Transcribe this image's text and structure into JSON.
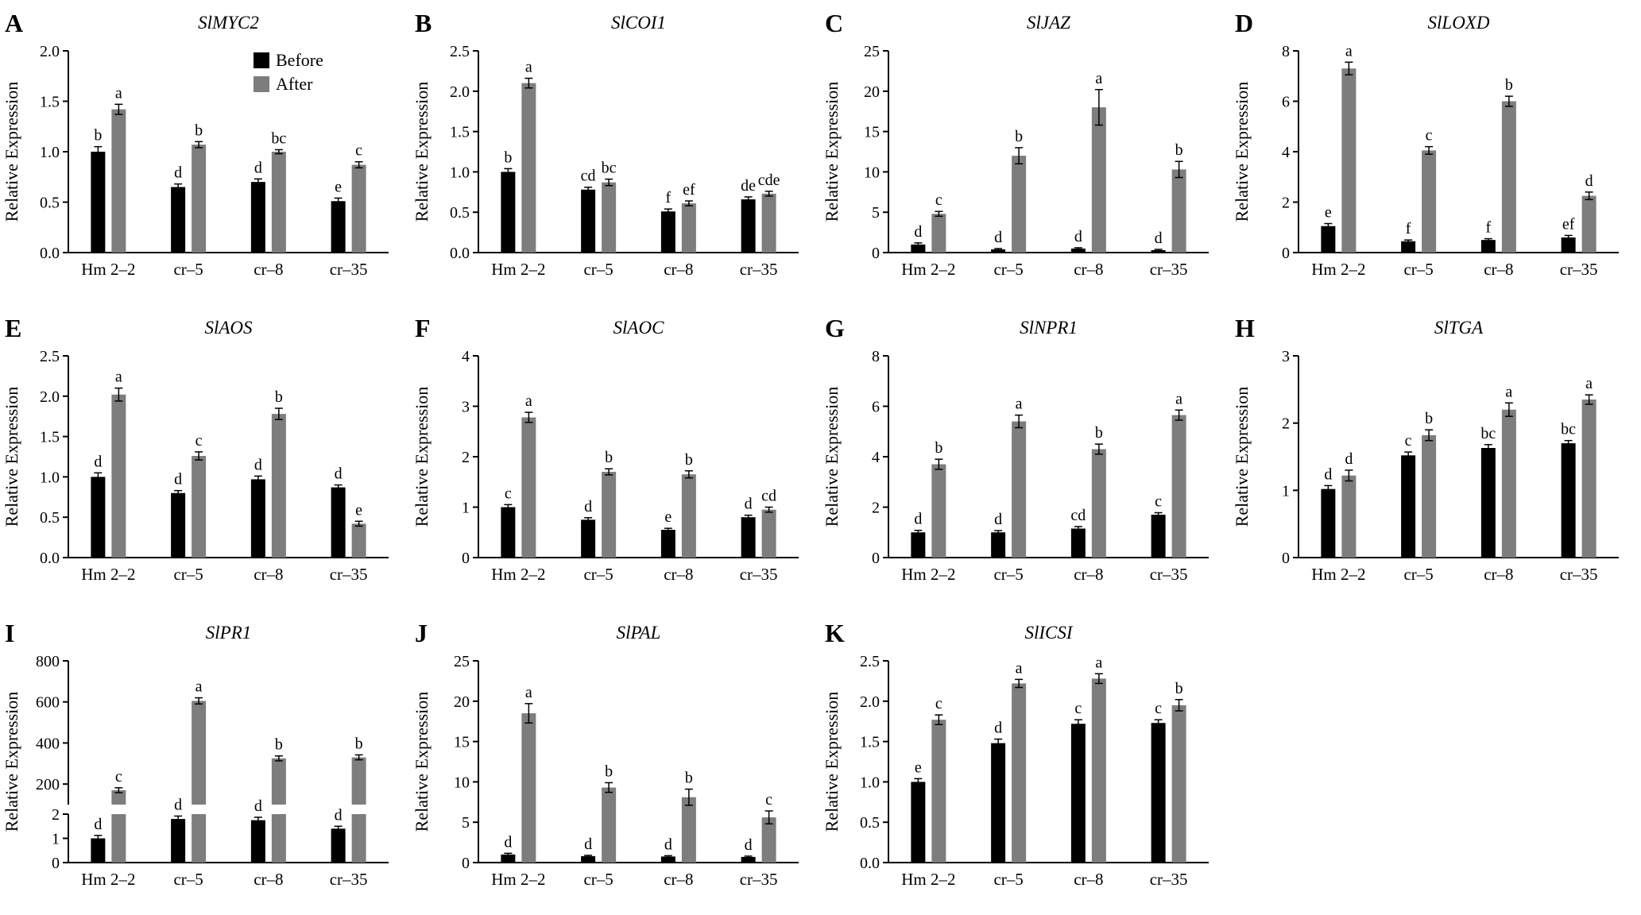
{
  "figure": {
    "ylabel": "Relative Expression",
    "legend": {
      "before": "Before",
      "after": "After"
    },
    "colors": {
      "before": "#000000",
      "after": "#7d7d7d"
    }
  },
  "chart_data": [
    {
      "panel": "A",
      "type": "bar",
      "title": "SlMYC2",
      "ylabel": "Relative Expression",
      "categories": [
        "Hm 2–2",
        "cr–5",
        "cr–8",
        "cr–35"
      ],
      "ylim": [
        0,
        2.0
      ],
      "yticks": [
        0,
        0.5,
        1.0,
        1.5,
        2.0
      ],
      "ytick_labels": [
        "0.0",
        "0.5",
        "1.0",
        "1.5",
        "2.0"
      ],
      "show_legend": true,
      "series": [
        {
          "name": "Before",
          "values": [
            1.0,
            0.65,
            0.7,
            0.51
          ],
          "errors": [
            0.05,
            0.03,
            0.03,
            0.03
          ],
          "letters": [
            "b",
            "d",
            "d",
            "e"
          ]
        },
        {
          "name": "After",
          "values": [
            1.42,
            1.07,
            1.0,
            0.87
          ],
          "errors": [
            0.05,
            0.03,
            0.02,
            0.03
          ],
          "letters": [
            "a",
            "b",
            "bc",
            "c"
          ]
        }
      ]
    },
    {
      "panel": "B",
      "type": "bar",
      "title": "SlCOI1",
      "ylabel": "Relative Expression",
      "categories": [
        "Hm 2–2",
        "cr–5",
        "cr–8",
        "cr–35"
      ],
      "ylim": [
        0,
        2.5
      ],
      "yticks": [
        0,
        0.5,
        1.0,
        1.5,
        2.0,
        2.5
      ],
      "ytick_labels": [
        "0.0",
        "0.5",
        "1.0",
        "1.5",
        "2.0",
        "2.5"
      ],
      "show_legend": false,
      "series": [
        {
          "name": "Before",
          "values": [
            1.0,
            0.78,
            0.51,
            0.66
          ],
          "errors": [
            0.04,
            0.03,
            0.03,
            0.03
          ],
          "letters": [
            "b",
            "cd",
            "f",
            "de"
          ]
        },
        {
          "name": "After",
          "values": [
            2.1,
            0.87,
            0.61,
            0.73
          ],
          "errors": [
            0.06,
            0.04,
            0.03,
            0.03
          ],
          "letters": [
            "a",
            "bc",
            "ef",
            "cde"
          ]
        }
      ]
    },
    {
      "panel": "C",
      "type": "bar",
      "title": "SlJAZ",
      "ylabel": "Relative Expression",
      "categories": [
        "Hm 2–2",
        "cr–5",
        "cr–8",
        "cr–35"
      ],
      "ylim": [
        0,
        25
      ],
      "yticks": [
        0,
        5,
        10,
        15,
        20,
        25
      ],
      "ytick_labels": [
        "0",
        "5",
        "10",
        "15",
        "20",
        "25"
      ],
      "show_legend": false,
      "series": [
        {
          "name": "Before",
          "values": [
            1.0,
            0.4,
            0.5,
            0.3
          ],
          "errors": [
            0.2,
            0.1,
            0.1,
            0.1
          ],
          "letters": [
            "d",
            "d",
            "d",
            "d"
          ]
        },
        {
          "name": "After",
          "values": [
            4.8,
            12.0,
            18.0,
            10.3
          ],
          "errors": [
            0.3,
            1.0,
            2.2,
            1.0
          ],
          "letters": [
            "c",
            "b",
            "a",
            "b"
          ]
        }
      ]
    },
    {
      "panel": "D",
      "type": "bar",
      "title": "SlLOXD",
      "ylabel": "Relative Expression",
      "categories": [
        "Hm 2–2",
        "cr–5",
        "cr–8",
        "cr–35"
      ],
      "ylim": [
        0,
        8
      ],
      "yticks": [
        0,
        2,
        4,
        6,
        8
      ],
      "ytick_labels": [
        "0",
        "2",
        "4",
        "6",
        "8"
      ],
      "show_legend": false,
      "series": [
        {
          "name": "Before",
          "values": [
            1.05,
            0.45,
            0.5,
            0.6
          ],
          "errors": [
            0.1,
            0.05,
            0.05,
            0.08
          ],
          "letters": [
            "e",
            "f",
            "f",
            "ef"
          ]
        },
        {
          "name": "After",
          "values": [
            7.3,
            4.05,
            6.0,
            2.25
          ],
          "errors": [
            0.25,
            0.15,
            0.2,
            0.15
          ],
          "letters": [
            "a",
            "c",
            "b",
            "d"
          ]
        }
      ]
    },
    {
      "panel": "E",
      "type": "bar",
      "title": "SlAOS",
      "ylabel": "Relative Expression",
      "categories": [
        "Hm 2–2",
        "cr–5",
        "cr–8",
        "cr–35"
      ],
      "ylim": [
        0,
        2.5
      ],
      "yticks": [
        0,
        0.5,
        1.0,
        1.5,
        2.0,
        2.5
      ],
      "ytick_labels": [
        "0.0",
        "0.5",
        "1.0",
        "1.5",
        "2.0",
        "2.5"
      ],
      "show_legend": false,
      "series": [
        {
          "name": "Before",
          "values": [
            1.0,
            0.8,
            0.97,
            0.87
          ],
          "errors": [
            0.05,
            0.03,
            0.04,
            0.03
          ],
          "letters": [
            "d",
            "d",
            "d",
            "d"
          ]
        },
        {
          "name": "After",
          "values": [
            2.02,
            1.26,
            1.78,
            0.42
          ],
          "errors": [
            0.08,
            0.05,
            0.07,
            0.03
          ],
          "letters": [
            "a",
            "c",
            "b",
            "e"
          ]
        }
      ]
    },
    {
      "panel": "F",
      "type": "bar",
      "title": "SlAOC",
      "ylabel": "Relative Expression",
      "categories": [
        "Hm 2–2",
        "cr–5",
        "cr–8",
        "cr–35"
      ],
      "ylim": [
        0,
        4
      ],
      "yticks": [
        0,
        1,
        2,
        3,
        4
      ],
      "ytick_labels": [
        "0",
        "1",
        "2",
        "3",
        "4"
      ],
      "show_legend": false,
      "series": [
        {
          "name": "Before",
          "values": [
            1.0,
            0.75,
            0.55,
            0.8
          ],
          "errors": [
            0.05,
            0.04,
            0.03,
            0.04
          ],
          "letters": [
            "c",
            "d",
            "e",
            "d"
          ]
        },
        {
          "name": "After",
          "values": [
            2.78,
            1.7,
            1.65,
            0.95
          ],
          "errors": [
            0.1,
            0.06,
            0.07,
            0.05
          ],
          "letters": [
            "a",
            "b",
            "b",
            "cd"
          ]
        }
      ]
    },
    {
      "panel": "G",
      "type": "bar",
      "title": "SlNPR1",
      "ylabel": "Relative Expression",
      "categories": [
        "Hm 2–2",
        "cr–5",
        "cr–8",
        "cr–35"
      ],
      "ylim": [
        0,
        8
      ],
      "yticks": [
        0,
        2,
        4,
        6,
        8
      ],
      "ytick_labels": [
        "0",
        "2",
        "4",
        "6",
        "8"
      ],
      "show_legend": false,
      "series": [
        {
          "name": "Before",
          "values": [
            1.0,
            1.0,
            1.15,
            1.7
          ],
          "errors": [
            0.08,
            0.07,
            0.08,
            0.08
          ],
          "letters": [
            "d",
            "d",
            "cd",
            "c"
          ]
        },
        {
          "name": "After",
          "values": [
            3.7,
            5.4,
            4.3,
            5.65
          ],
          "errors": [
            0.2,
            0.25,
            0.2,
            0.2
          ],
          "letters": [
            "b",
            "a",
            "b",
            "a"
          ]
        }
      ]
    },
    {
      "panel": "H",
      "type": "bar",
      "title": "SlTGA",
      "ylabel": "Relative Expression",
      "categories": [
        "Hm 2–2",
        "cr–5",
        "cr–8",
        "cr–35"
      ],
      "ylim": [
        0,
        3
      ],
      "yticks": [
        0,
        1,
        2,
        3
      ],
      "ytick_labels": [
        "0",
        "1",
        "2",
        "3"
      ],
      "show_legend": false,
      "series": [
        {
          "name": "Before",
          "values": [
            1.02,
            1.52,
            1.63,
            1.7
          ],
          "errors": [
            0.05,
            0.05,
            0.05,
            0.04
          ],
          "letters": [
            "d",
            "c",
            "bc",
            "bc"
          ]
        },
        {
          "name": "After",
          "values": [
            1.22,
            1.82,
            2.2,
            2.35
          ],
          "errors": [
            0.08,
            0.08,
            0.1,
            0.07
          ],
          "letters": [
            "d",
            "b",
            "a",
            "a"
          ]
        }
      ]
    },
    {
      "panel": "I",
      "type": "bar",
      "title": "SlPR1",
      "ylabel": "Relative Expression",
      "categories": [
        "Hm 2–2",
        "cr–5",
        "cr–8",
        "cr–35"
      ],
      "axis_break": {
        "lower_range": [
          0,
          2
        ],
        "lower_ticks": [
          "0",
          "1",
          "2"
        ],
        "upper_range": [
          100,
          800
        ],
        "upper_ticks": [
          "200",
          "400",
          "600",
          "800"
        ]
      },
      "show_legend": false,
      "series": [
        {
          "name": "Before",
          "values": [
            1.0,
            1.8,
            1.75,
            1.4
          ],
          "errors": [
            0.12,
            0.12,
            0.12,
            0.1
          ],
          "letters": [
            "d",
            "d",
            "d",
            "d"
          ]
        },
        {
          "name": "After",
          "values": [
            170,
            605,
            325,
            330
          ],
          "errors": [
            12,
            15,
            12,
            12
          ],
          "letters": [
            "c",
            "a",
            "b",
            "b"
          ]
        }
      ]
    },
    {
      "panel": "J",
      "type": "bar",
      "title": "SlPAL",
      "ylabel": "Relative Expression",
      "categories": [
        "Hm 2–2",
        "cr–5",
        "cr–8",
        "cr–35"
      ],
      "ylim": [
        0,
        25
      ],
      "yticks": [
        0,
        5,
        10,
        15,
        20,
        25
      ],
      "ytick_labels": [
        "0",
        "5",
        "10",
        "15",
        "20",
        "25"
      ],
      "show_legend": false,
      "series": [
        {
          "name": "Before",
          "values": [
            1.0,
            0.8,
            0.75,
            0.7
          ],
          "errors": [
            0.15,
            0.1,
            0.1,
            0.1
          ],
          "letters": [
            "d",
            "d",
            "d",
            "d"
          ]
        },
        {
          "name": "After",
          "values": [
            18.5,
            9.3,
            8.1,
            5.6
          ],
          "errors": [
            1.2,
            0.6,
            1.0,
            0.8
          ],
          "letters": [
            "a",
            "b",
            "b",
            "c"
          ]
        }
      ]
    },
    {
      "panel": "K",
      "type": "bar",
      "title": "SlICSI",
      "ylabel": "Relative Expression",
      "categories": [
        "Hm 2–2",
        "cr–5",
        "cr–8",
        "cr–35"
      ],
      "ylim": [
        0,
        2.5
      ],
      "yticks": [
        0,
        0.5,
        1.0,
        1.5,
        2.0,
        2.5
      ],
      "ytick_labels": [
        "0.0",
        "0.5",
        "1.0",
        "1.5",
        "2.0",
        "2.5"
      ],
      "show_legend": false,
      "series": [
        {
          "name": "Before",
          "values": [
            1.0,
            1.48,
            1.72,
            1.73
          ],
          "errors": [
            0.04,
            0.05,
            0.05,
            0.04
          ],
          "letters": [
            "e",
            "d",
            "c",
            "c"
          ]
        },
        {
          "name": "After",
          "values": [
            1.77,
            2.22,
            2.28,
            1.95
          ],
          "errors": [
            0.06,
            0.05,
            0.06,
            0.07
          ],
          "letters": [
            "c",
            "a",
            "a",
            "b"
          ]
        }
      ]
    }
  ]
}
